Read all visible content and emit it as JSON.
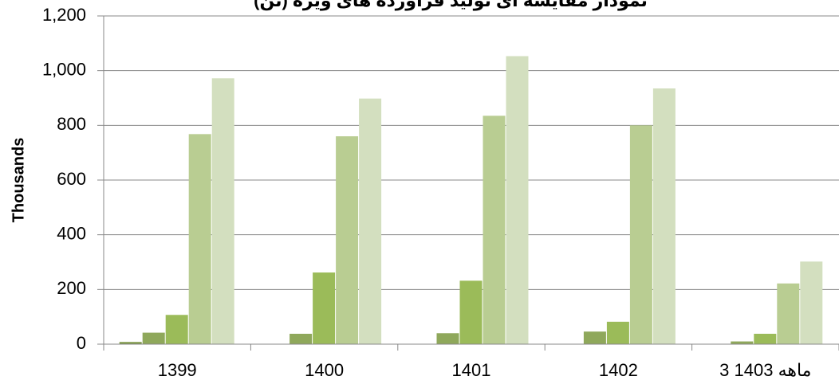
{
  "chart_data": {
    "type": "bar",
    "title": "نمودار مقایسه ای تولید فرآورده های ویژه (تن)",
    "y_label": "Thousands",
    "categories": [
      "1399",
      "1400",
      "1401",
      "1402",
      "3 ماهه 1403"
    ],
    "series": [
      {
        "color": "#7f9a4a",
        "values": [
          8,
          0,
          0,
          0,
          0
        ]
      },
      {
        "color": "#8fa85b",
        "values": [
          42,
          38,
          40,
          46,
          10
        ]
      },
      {
        "color": "#9bbb59",
        "values": [
          107,
          262,
          232,
          82,
          38
        ]
      },
      {
        "color": "#b9cd92",
        "values": [
          768,
          760,
          835,
          800,
          222
        ]
      },
      {
        "color": "#d3dfbf",
        "values": [
          972,
          898,
          1053,
          935,
          302
        ]
      }
    ],
    "ylim": [
      0,
      1200
    ],
    "yticks": [
      0,
      200,
      400,
      600,
      800,
      {
        "value": 1000,
        "label": "1,000"
      },
      {
        "value": 1200,
        "label": "1,200"
      }
    ],
    "grid": true
  }
}
